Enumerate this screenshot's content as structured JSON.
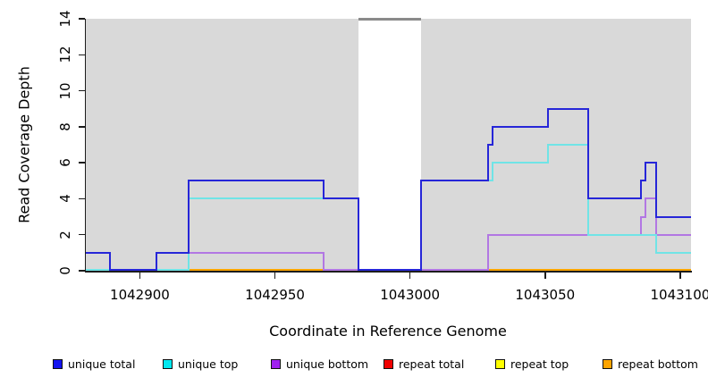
{
  "chart_data": {
    "type": "line",
    "style": "step",
    "title": "",
    "xlabel": "Coordinate in Reference Genome",
    "ylabel": "Read Coverage Depth",
    "xlim": [
      1042880,
      1043104
    ],
    "ylim": [
      0,
      14
    ],
    "xticks": [
      1042900,
      1042950,
      1043000,
      1043050,
      1043100
    ],
    "yticks": [
      0,
      2,
      4,
      6,
      8,
      10,
      12,
      14
    ],
    "plot_background": "#d9d9d9",
    "grid": "off",
    "legend_position": "bottom",
    "masked_region": {
      "x1": 1042981,
      "x2": 1043004,
      "fill": "#ffffff",
      "top_line_y": 14,
      "top_line_color": "#8a8a8a"
    },
    "zero_overlap_segments": [
      {
        "x1": 1042880,
        "x2": 1042906,
        "color": "#df5068"
      },
      {
        "x1": 1042906,
        "x2": 1042918,
        "color": "#85d48c"
      },
      {
        "x1": 1042968,
        "x2": 1043029,
        "color": "#df5068"
      }
    ],
    "series": [
      {
        "name": "repeat total",
        "color": "#f00000",
        "points": [
          [
            1042880,
            0
          ],
          [
            1043104,
            0
          ]
        ]
      },
      {
        "name": "repeat top",
        "color": "#ffff00",
        "points": [
          [
            1042880,
            0
          ],
          [
            1043104,
            0
          ]
        ]
      },
      {
        "name": "repeat bottom",
        "color": "#ffa500",
        "points": [
          [
            1042880,
            0
          ],
          [
            1043104,
            0
          ]
        ]
      },
      {
        "name": "unique bottom",
        "color": "#b277e3",
        "points": [
          [
            1042880,
            0
          ],
          [
            1042906,
            1
          ],
          [
            1042968,
            0
          ],
          [
            1043029,
            2
          ],
          [
            1043085.5,
            3
          ],
          [
            1043087,
            4
          ],
          [
            1043091,
            2
          ],
          [
            1043104,
            2
          ]
        ]
      },
      {
        "name": "unique top",
        "color": "#70e4e6",
        "points": [
          [
            1042880,
            0
          ],
          [
            1042918,
            4
          ],
          [
            1042981,
            0
          ],
          [
            1043004,
            5
          ],
          [
            1043030.5,
            6
          ],
          [
            1043051,
            7
          ],
          [
            1043066,
            2
          ],
          [
            1043091,
            1
          ],
          [
            1043104,
            1
          ]
        ]
      },
      {
        "name": "unique total",
        "color": "#2626d8",
        "points": [
          [
            1042880,
            1
          ],
          [
            1042889,
            0
          ],
          [
            1042906,
            1
          ],
          [
            1042918,
            5
          ],
          [
            1042968,
            4
          ],
          [
            1042981,
            0
          ],
          [
            1043004,
            5
          ],
          [
            1043029,
            7
          ],
          [
            1043030.5,
            8
          ],
          [
            1043051,
            9
          ],
          [
            1043066,
            4
          ],
          [
            1043085.5,
            5
          ],
          [
            1043087,
            6
          ],
          [
            1043091,
            3
          ],
          [
            1043104,
            3
          ]
        ]
      }
    ],
    "legend": [
      {
        "label": "unique total",
        "color": "#1414f0"
      },
      {
        "label": "unique top",
        "color": "#00e8f0"
      },
      {
        "label": "unique bottom",
        "color": "#a020f0"
      },
      {
        "label": "repeat total",
        "color": "#f00000"
      },
      {
        "label": "repeat top",
        "color": "#ffff00"
      },
      {
        "label": "repeat bottom",
        "color": "#ffa500"
      }
    ]
  }
}
